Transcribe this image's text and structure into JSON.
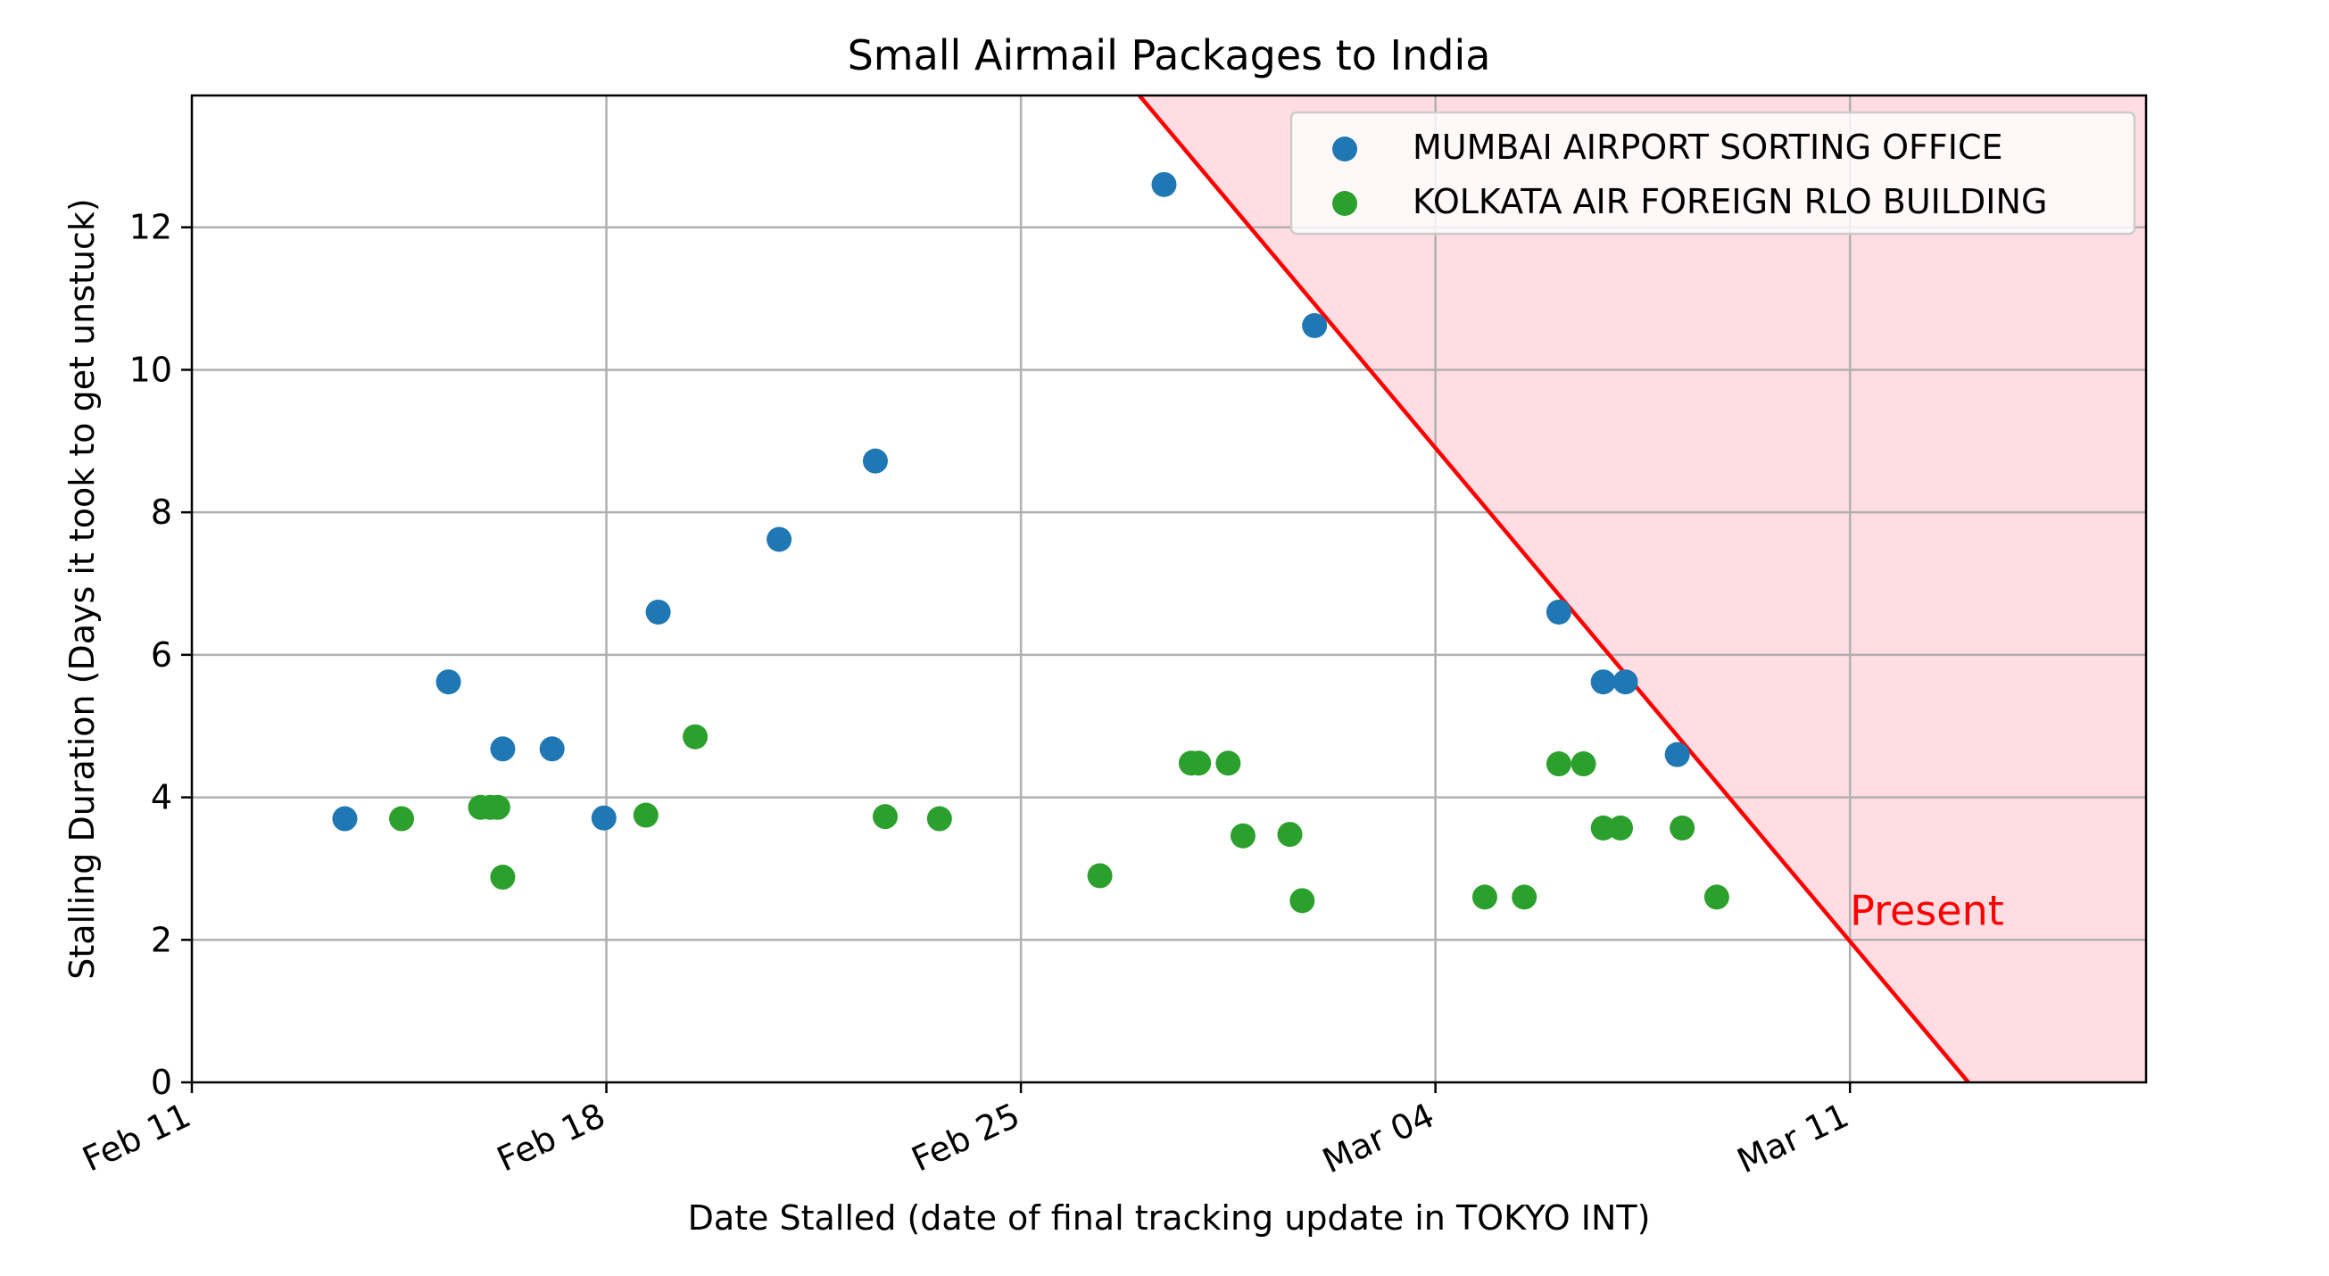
{
  "chart_data": {
    "type": "scatter",
    "title": "Small Airmail Packages to India",
    "xlabel": "Date Stalled (date of final tracking update in TOKYO INT)",
    "ylabel": "Stalling Duration (Days it took to get unstuck)",
    "x_axis_kind": "date",
    "xlim": [
      "2023-02-11",
      "2023-03-16"
    ],
    "ylim": [
      0,
      13.85
    ],
    "x_ticks": [
      {
        "date": "2023-02-11",
        "label": "Feb 11"
      },
      {
        "date": "2023-02-18",
        "label": "Feb 18"
      },
      {
        "date": "2023-02-25",
        "label": "Feb 25"
      },
      {
        "date": "2023-03-04",
        "label": "Mar 04"
      },
      {
        "date": "2023-03-11",
        "label": "Mar 11"
      }
    ],
    "y_ticks": [
      0,
      2,
      4,
      6,
      8,
      10,
      12
    ],
    "grid": true,
    "legend_position": "top-right",
    "series": [
      {
        "name": "MUMBAI AIRPORT SORTING OFFICE",
        "color": "#1f77b4",
        "points": [
          {
            "x": "2023-02-13 14:00",
            "y": 3.7
          },
          {
            "x": "2023-02-15 08:00",
            "y": 5.62
          },
          {
            "x": "2023-02-16 06:00",
            "y": 4.68
          },
          {
            "x": "2023-02-17 02:00",
            "y": 4.68
          },
          {
            "x": "2023-02-17 23:00",
            "y": 3.71
          },
          {
            "x": "2023-02-18 21:00",
            "y": 6.6
          },
          {
            "x": "2023-02-20 22:00",
            "y": 7.62
          },
          {
            "x": "2023-02-22 13:00",
            "y": 8.72
          },
          {
            "x": "2023-02-27 10:00",
            "y": 12.6
          },
          {
            "x": "2023-03-01 23:00",
            "y": 10.62
          },
          {
            "x": "2023-03-06 02:00",
            "y": 6.6
          },
          {
            "x": "2023-03-06 20:00",
            "y": 5.62
          },
          {
            "x": "2023-03-07 05:00",
            "y": 5.62
          },
          {
            "x": "2023-03-08 02:00",
            "y": 4.6
          }
        ]
      },
      {
        "name": "KOLKATA AIR FOREIGN RLO BUILDING",
        "color": "#2ca02c",
        "points": [
          {
            "x": "2023-02-14 13:00",
            "y": 3.7
          },
          {
            "x": "2023-02-15 21:00",
            "y": 3.86
          },
          {
            "x": "2023-02-16 01:00",
            "y": 3.86
          },
          {
            "x": "2023-02-16 04:00",
            "y": 3.86
          },
          {
            "x": "2023-02-16 06:00",
            "y": 2.88
          },
          {
            "x": "2023-02-18 16:00",
            "y": 3.75
          },
          {
            "x": "2023-02-19 12:00",
            "y": 4.85
          },
          {
            "x": "2023-02-22 17:00",
            "y": 3.73
          },
          {
            "x": "2023-02-23 15:00",
            "y": 3.7
          },
          {
            "x": "2023-02-26 08:00",
            "y": 2.9
          },
          {
            "x": "2023-02-27 21:00",
            "y": 4.48
          },
          {
            "x": "2023-02-28 00:00",
            "y": 4.48
          },
          {
            "x": "2023-02-28 12:00",
            "y": 4.48
          },
          {
            "x": "2023-02-28 18:00",
            "y": 3.46
          },
          {
            "x": "2023-03-01 13:00",
            "y": 3.48
          },
          {
            "x": "2023-03-01 18:00",
            "y": 2.55
          },
          {
            "x": "2023-03-04 20:00",
            "y": 2.6
          },
          {
            "x": "2023-03-05 12:00",
            "y": 2.6
          },
          {
            "x": "2023-03-06 02:00",
            "y": 4.47
          },
          {
            "x": "2023-03-06 12:00",
            "y": 4.47
          },
          {
            "x": "2023-03-06 20:00",
            "y": 3.57
          },
          {
            "x": "2023-03-07 03:00",
            "y": 3.57
          },
          {
            "x": "2023-03-08 04:00",
            "y": 3.57
          },
          {
            "x": "2023-03-08 18:00",
            "y": 2.6
          }
        ]
      }
    ],
    "present_line": {
      "label": "Present",
      "color": "#ff0000",
      "fill_color": "#ffdde2",
      "points": [
        {
          "x": "2023-02-27",
          "y": 13.85
        },
        {
          "x": "2023-03-13",
          "y": 0
        }
      ],
      "label_anchor": {
        "x": "2023-03-11",
        "y": 2.4
      }
    }
  }
}
